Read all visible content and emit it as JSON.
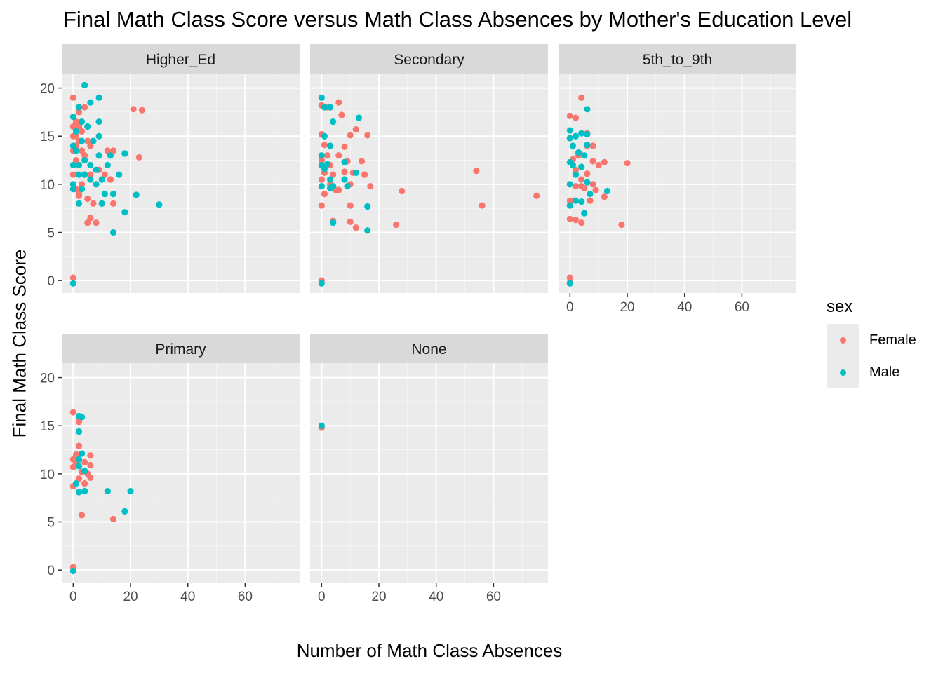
{
  "chart_data": {
    "type": "scatter",
    "title": "Final Math Class Score versus Math Class Absences by Mother's Education Level",
    "xlabel": "Number of Math Class Absences",
    "ylabel": "Final Math Class Score",
    "xlim": [
      -4,
      79
    ],
    "ylim": [
      -1.3,
      21.5
    ],
    "x_ticks": [
      0,
      20,
      40,
      60
    ],
    "y_ticks": [
      0,
      5,
      10,
      15,
      20
    ],
    "grid": true,
    "legend": {
      "title": "sex",
      "placement": "right",
      "entries": [
        {
          "name": "Female",
          "color": "#F8766D"
        },
        {
          "name": "Male",
          "color": "#00BFC4"
        }
      ]
    },
    "facets": [
      {
        "label": "Higher_Ed",
        "female": [
          [
            0,
            19
          ],
          [
            4,
            18
          ],
          [
            2,
            17.5
          ],
          [
            1,
            16.5
          ],
          [
            0,
            16
          ],
          [
            2,
            16
          ],
          [
            3,
            15.5
          ],
          [
            1,
            15
          ],
          [
            0,
            15
          ],
          [
            2,
            14.5
          ],
          [
            5,
            14.5
          ],
          [
            6,
            14
          ],
          [
            1,
            14
          ],
          [
            0,
            13.5
          ],
          [
            3,
            13.5
          ],
          [
            4,
            13
          ],
          [
            1,
            12.5
          ],
          [
            2,
            12
          ],
          [
            0,
            11
          ],
          [
            4,
            11
          ],
          [
            6,
            11
          ],
          [
            9,
            11.5
          ],
          [
            11,
            11
          ],
          [
            13,
            10.5
          ],
          [
            3,
            10
          ],
          [
            8,
            10
          ],
          [
            1,
            9.5
          ],
          [
            2,
            9
          ],
          [
            5,
            8.5
          ],
          [
            7,
            8
          ],
          [
            10,
            8
          ],
          [
            14,
            8
          ],
          [
            6,
            6.5
          ],
          [
            5,
            6
          ],
          [
            8,
            6
          ],
          [
            0,
            0.3
          ],
          [
            21,
            17.8
          ],
          [
            24,
            17.7
          ],
          [
            23,
            12.8
          ],
          [
            12,
            13.5
          ],
          [
            14,
            13.5
          ],
          [
            2,
            8.8
          ]
        ],
        "male": [
          [
            4,
            20.3
          ],
          [
            9,
            19
          ],
          [
            2,
            18
          ],
          [
            6,
            18.5
          ],
          [
            0,
            17
          ],
          [
            3,
            16.5
          ],
          [
            5,
            16
          ],
          [
            9,
            16.5
          ],
          [
            1,
            15.5
          ],
          [
            0,
            14
          ],
          [
            3,
            14.5
          ],
          [
            9,
            15
          ],
          [
            1,
            13.5
          ],
          [
            7,
            14.5
          ],
          [
            2,
            12
          ],
          [
            4,
            12.5
          ],
          [
            6,
            12
          ],
          [
            9,
            13
          ],
          [
            13,
            13
          ],
          [
            18,
            13.2
          ],
          [
            0,
            12
          ],
          [
            2,
            11
          ],
          [
            4,
            11
          ],
          [
            8,
            11.5
          ],
          [
            12,
            12
          ],
          [
            16,
            11
          ],
          [
            0,
            10
          ],
          [
            6,
            10.5
          ],
          [
            3,
            9.5
          ],
          [
            10,
            10.5
          ],
          [
            11,
            9
          ],
          [
            14,
            9
          ],
          [
            22,
            8.9
          ],
          [
            2,
            8
          ],
          [
            10,
            8
          ],
          [
            18,
            7.1
          ],
          [
            30,
            7.9
          ],
          [
            14,
            5
          ],
          [
            0,
            9.5
          ],
          [
            0,
            -0.3
          ],
          [
            8,
            10
          ]
        ]
      },
      {
        "label": "Secondary",
        "female": [
          [
            0,
            18.2
          ],
          [
            6,
            18.5
          ],
          [
            2,
            18
          ],
          [
            7,
            17.2
          ],
          [
            0,
            15.2
          ],
          [
            12,
            15.7
          ],
          [
            10,
            15.1
          ],
          [
            16,
            15.1
          ],
          [
            1,
            14.1
          ],
          [
            8,
            13.9
          ],
          [
            2,
            13
          ],
          [
            6,
            13
          ],
          [
            0,
            12.5
          ],
          [
            3,
            12
          ],
          [
            9,
            12.4
          ],
          [
            14,
            12.4
          ],
          [
            1,
            11.2
          ],
          [
            4,
            11
          ],
          [
            8,
            11.3
          ],
          [
            11,
            11.2
          ],
          [
            0,
            10.5
          ],
          [
            3,
            10
          ],
          [
            15,
            11
          ],
          [
            17,
            9.8
          ],
          [
            1,
            9
          ],
          [
            5,
            9.4
          ],
          [
            6,
            9.4
          ],
          [
            10,
            10
          ],
          [
            0,
            7.8
          ],
          [
            10,
            7.8
          ],
          [
            4,
            6.2
          ],
          [
            10,
            6.1
          ],
          [
            12,
            5.5
          ],
          [
            26,
            5.8
          ],
          [
            28,
            9.3
          ],
          [
            54,
            11.4
          ],
          [
            56,
            7.8
          ],
          [
            75,
            8.8
          ],
          [
            0,
            0
          ]
        ],
        "male": [
          [
            0,
            19
          ],
          [
            1,
            18
          ],
          [
            3,
            18
          ],
          [
            4,
            16.5
          ],
          [
            13,
            16.9
          ],
          [
            1,
            15
          ],
          [
            3,
            14
          ],
          [
            0,
            13
          ],
          [
            2,
            12.1
          ],
          [
            8,
            12.3
          ],
          [
            0,
            12
          ],
          [
            1,
            11.6
          ],
          [
            3,
            10.5
          ],
          [
            4,
            9.8
          ],
          [
            8,
            10.5
          ],
          [
            12,
            11.2
          ],
          [
            3,
            9.6
          ],
          [
            9,
            9.8
          ],
          [
            16,
            7.7
          ],
          [
            4,
            6
          ],
          [
            16,
            5.2
          ],
          [
            0,
            9.8
          ],
          [
            0,
            -0.3
          ]
        ]
      },
      {
        "label": "5th_to_9th",
        "female": [
          [
            4,
            19
          ],
          [
            0,
            17.1
          ],
          [
            2,
            16.9
          ],
          [
            6,
            15.3
          ],
          [
            6,
            14
          ],
          [
            8,
            14
          ],
          [
            3,
            13
          ],
          [
            1,
            12.6
          ],
          [
            8,
            12.4
          ],
          [
            10,
            12
          ],
          [
            12,
            12.3
          ],
          [
            20,
            12.2
          ],
          [
            2,
            11.5
          ],
          [
            6,
            11.1
          ],
          [
            4,
            10.5
          ],
          [
            8,
            10
          ],
          [
            0,
            10
          ],
          [
            2,
            9.8
          ],
          [
            4,
            9.8
          ],
          [
            5,
            9.6
          ],
          [
            9,
            9.4
          ],
          [
            12,
            8.7
          ],
          [
            0,
            8.3
          ],
          [
            7,
            8.3
          ],
          [
            0,
            6.4
          ],
          [
            2,
            6.3
          ],
          [
            4,
            6
          ],
          [
            18,
            5.8
          ],
          [
            0,
            0.3
          ],
          [
            0,
            -0.2
          ]
        ],
        "male": [
          [
            6,
            17.8
          ],
          [
            0,
            15.6
          ],
          [
            4,
            15.3
          ],
          [
            6,
            15.2
          ],
          [
            0,
            14.8
          ],
          [
            2,
            15
          ],
          [
            1,
            14
          ],
          [
            6,
            14.1
          ],
          [
            3,
            13.3
          ],
          [
            5,
            13
          ],
          [
            0,
            12.3
          ],
          [
            1,
            12
          ],
          [
            4,
            11.8
          ],
          [
            2,
            11
          ],
          [
            0,
            10
          ],
          [
            6,
            10.2
          ],
          [
            2,
            8.3
          ],
          [
            4,
            8.2
          ],
          [
            7,
            9
          ],
          [
            13,
            9.3
          ],
          [
            5,
            7
          ],
          [
            0,
            7.8
          ],
          [
            0,
            -0.3
          ]
        ]
      },
      {
        "label": "Primary",
        "female": [
          [
            0,
            16.4
          ],
          [
            2,
            15.4
          ],
          [
            1,
            12
          ],
          [
            2,
            12.9
          ],
          [
            6,
            11.9
          ],
          [
            0,
            11.5
          ],
          [
            1,
            11
          ],
          [
            4,
            11.2
          ],
          [
            6,
            10.9
          ],
          [
            0,
            10.7
          ],
          [
            3,
            10.2
          ],
          [
            5,
            10
          ],
          [
            6,
            9.6
          ],
          [
            2,
            9.5
          ],
          [
            4,
            9
          ],
          [
            0,
            8.7
          ],
          [
            3,
            5.7
          ],
          [
            14,
            5.3
          ],
          [
            0,
            0.3
          ]
        ],
        "male": [
          [
            2,
            16
          ],
          [
            3,
            15.9
          ],
          [
            2,
            14.4
          ],
          [
            3,
            12.1
          ],
          [
            2,
            11.5
          ],
          [
            2,
            10.8
          ],
          [
            4,
            10.3
          ],
          [
            1,
            9
          ],
          [
            2,
            8.1
          ],
          [
            4,
            8.2
          ],
          [
            12,
            8.2
          ],
          [
            20,
            8.2
          ],
          [
            18,
            6.1
          ],
          [
            0,
            -0.1
          ]
        ]
      },
      {
        "label": "None",
        "female": [
          [
            0,
            14.8
          ]
        ],
        "male": [
          [
            0,
            15
          ]
        ]
      }
    ]
  }
}
